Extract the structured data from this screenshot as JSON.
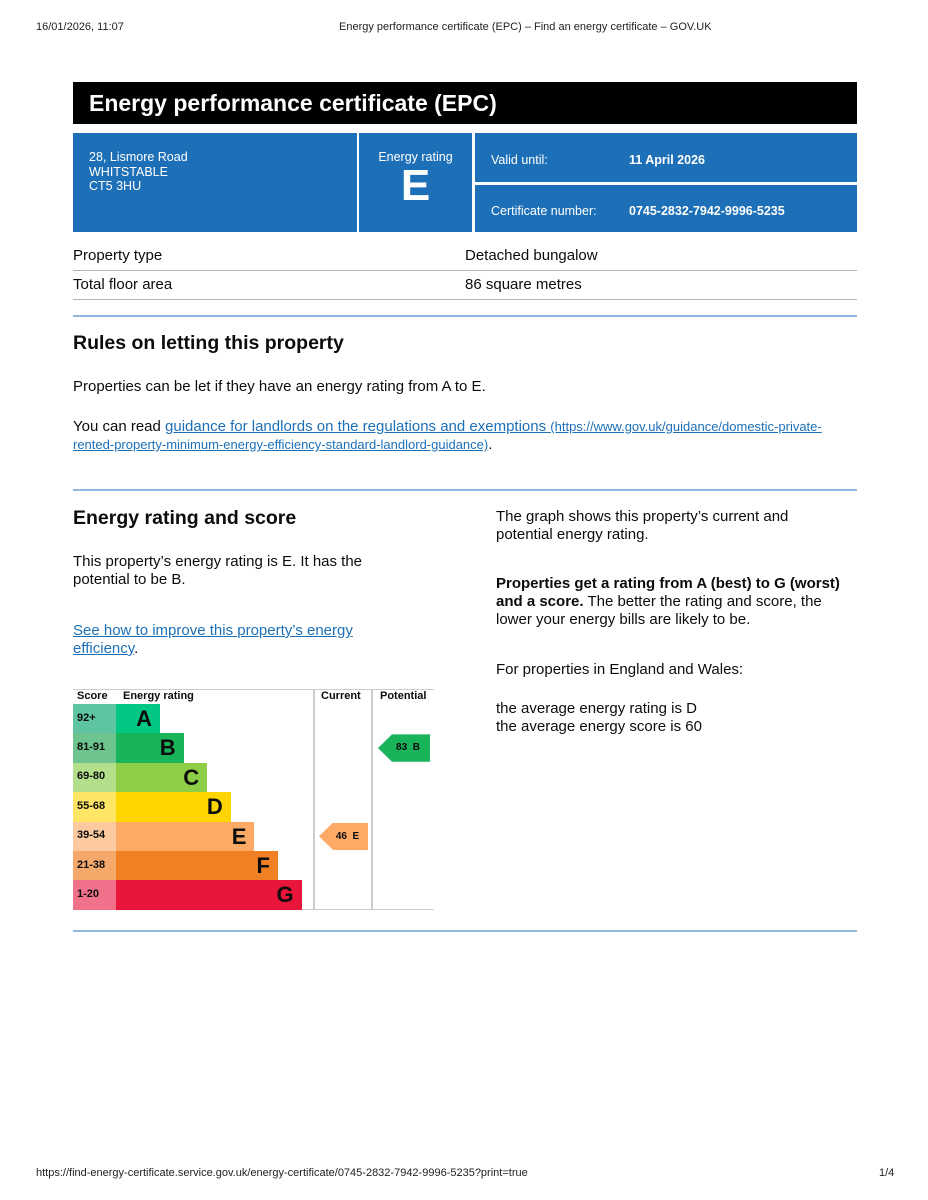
{
  "browser": {
    "datetime": "16/01/2026, 11:07",
    "page_title": "Energy performance certificate (EPC) – Find an energy certificate – GOV.UK",
    "url": "https://find-energy-certificate.service.gov.uk/energy-certificate/0745-2832-7942-9996-5235?print=true",
    "page_number": "1/4"
  },
  "certificate": {
    "title": "Energy performance certificate (EPC)",
    "address": [
      "28, Lismore Road",
      "WHITSTABLE",
      "CT5 3HU"
    ],
    "rating_label": "Energy rating",
    "rating": "E",
    "valid_label": "Valid until:",
    "valid_value": "11 April 2026",
    "cert_label": "Certificate number:",
    "cert_value": "0745-2832-7942-9996-5235",
    "accent": "#1d70b8"
  },
  "property": {
    "rows": [
      {
        "label": "Property type",
        "value": "Detached bungalow"
      },
      {
        "label": "Total floor area",
        "value": "86 square metres"
      }
    ]
  },
  "letting": {
    "heading": "Rules on letting this property",
    "para1": "Properties can be let if they have an energy rating from A to E.",
    "para2_prefix": "You can read ",
    "link_text": "guidance for landlords on the regulations and exemptions",
    "link_url": "(https://www.gov.uk/guidance/domestic-private-rented-property-minimum-energy-efficiency-standard-landlord-guidance)",
    "para2_suffix": "."
  },
  "score": {
    "heading": "Energy rating and score",
    "para1": "This property’s energy rating is E. It has the potential to be B.",
    "link_text": "See how to improve this property’s energy efficiency",
    "link_suffix": ".",
    "right_para1": "The graph shows this property’s current and potential energy rating.",
    "right_bold": "Properties get a rating from A (best) to G (worst) and a score.",
    "right_rest": " The better the rating and score, the lower your energy bills are likely to be.",
    "right_para3": "For properties in England and Wales:",
    "avg1": "the average energy rating is D",
    "avg2": "the average energy score is 60"
  },
  "chart_data": {
    "type": "bar",
    "headers": [
      "Score",
      "Energy rating",
      "Current",
      "Potential"
    ],
    "bands": [
      {
        "letter": "A",
        "range": "92+",
        "color": "#00c781",
        "score_bg": "#5fc5a0"
      },
      {
        "letter": "B",
        "range": "81-91",
        "color": "#19b459",
        "score_bg": "#6dc48f"
      },
      {
        "letter": "C",
        "range": "69-80",
        "color": "#8dce46",
        "score_bg": "#b3de8a"
      },
      {
        "letter": "D",
        "range": "55-68",
        "color": "#ffd500",
        "score_bg": "#ffe566"
      },
      {
        "letter": "E",
        "range": "39-54",
        "color": "#fcaa65",
        "score_bg": "#fdcaa0"
      },
      {
        "letter": "F",
        "range": "21-38",
        "color": "#ef8023",
        "score_bg": "#f4a86a"
      },
      {
        "letter": "G",
        "range": "1-20",
        "color": "#e9153b",
        "score_bg": "#f0728a"
      }
    ],
    "current": {
      "score": 46,
      "letter": "E",
      "label": "46  E"
    },
    "potential": {
      "score": 83,
      "letter": "B",
      "label": "83  B"
    }
  }
}
